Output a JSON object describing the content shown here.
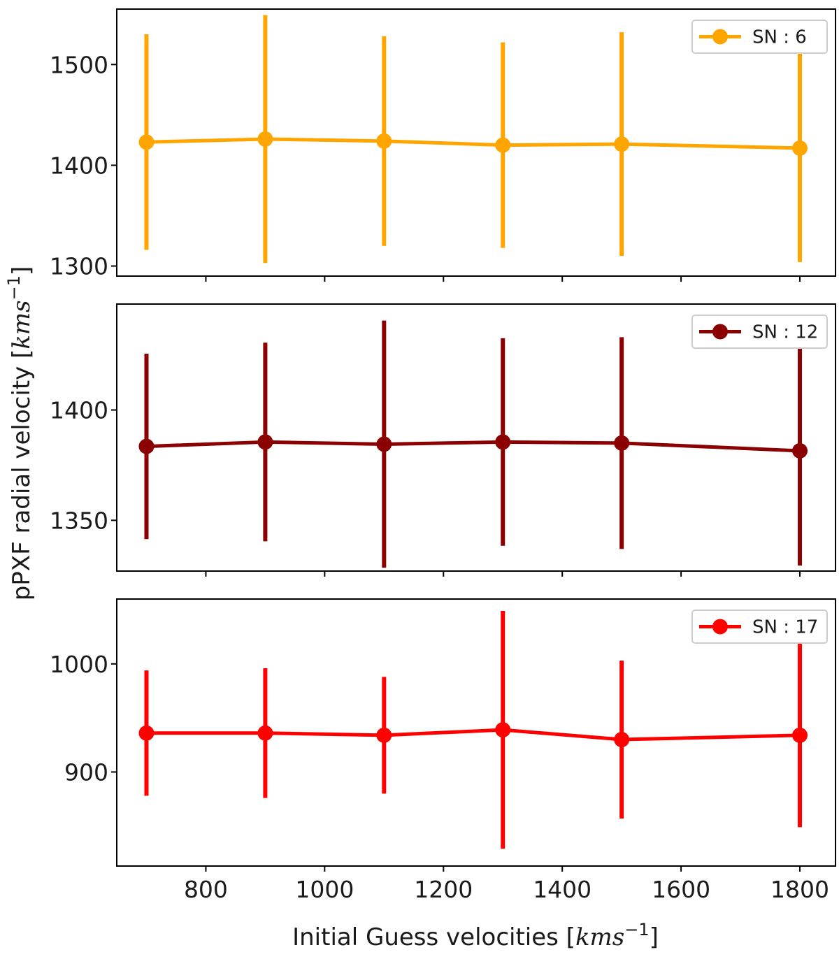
{
  "chart_data": [
    {
      "type": "line",
      "panel": "top",
      "x": [
        700,
        900,
        1100,
        1300,
        1500,
        1800
      ],
      "series": [
        {
          "name": "SN : 6",
          "color": "#ffa500",
          "values": [
            1423,
            1426,
            1424,
            1420,
            1421,
            1417
          ],
          "errors": [
            107,
            123,
            104,
            102,
            111,
            113
          ]
        }
      ],
      "xlim": [
        650,
        1860
      ],
      "ylim": [
        1290,
        1555
      ],
      "yticks": [
        1300,
        1400,
        1500
      ],
      "legend": "top-right"
    },
    {
      "type": "line",
      "panel": "middle",
      "x": [
        700,
        900,
        1100,
        1300,
        1500,
        1800
      ],
      "series": [
        {
          "name": "SN : 12",
          "color": "#8b0000",
          "values": [
            1383.5,
            1385.5,
            1384.5,
            1385.5,
            1385,
            1381.5
          ],
          "errors": [
            42,
            45,
            56,
            47,
            48,
            52
          ]
        }
      ],
      "xlim": [
        650,
        1860
      ],
      "ylim": [
        1327,
        1448
      ],
      "yticks": [
        1350,
        1400
      ],
      "legend": "top-right"
    },
    {
      "type": "line",
      "panel": "bottom",
      "x": [
        700,
        900,
        1100,
        1300,
        1500,
        1800
      ],
      "series": [
        {
          "name": "SN : 17",
          "color": "#ff0000",
          "values": [
            936,
            936,
            934,
            939,
            930,
            934
          ],
          "errors": [
            58,
            60,
            54,
            110,
            73,
            85
          ]
        }
      ],
      "xlim": [
        650,
        1860
      ],
      "ylim": [
        813,
        1060
      ],
      "yticks": [
        900,
        1000
      ],
      "xticks": [
        800,
        1000,
        1200,
        1400,
        1600,
        1800
      ],
      "legend": "top-right"
    }
  ],
  "axes": {
    "xlabel": {
      "text": "Initial Guess velocities [",
      "unit_math": "kms",
      "unit_exp": "−1",
      "close": "]"
    },
    "ylabel": {
      "text": "pPXF radial velocity [",
      "unit_math": "kms",
      "unit_exp": "−1",
      "close": "]"
    }
  }
}
